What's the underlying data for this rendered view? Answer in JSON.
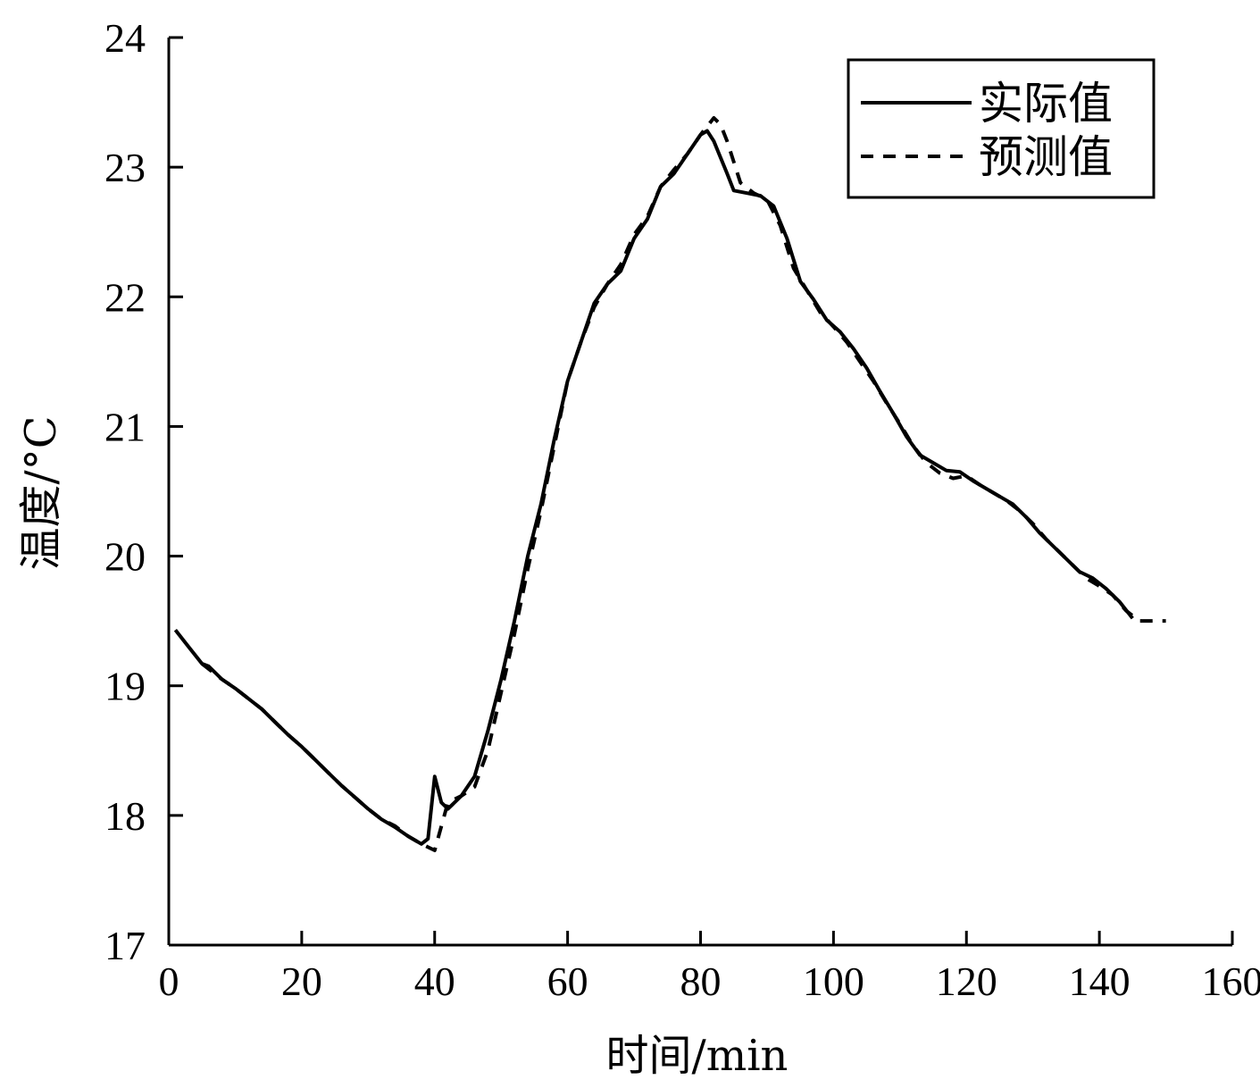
{
  "chart_data": {
    "type": "line",
    "title": "",
    "xlabel": "时间/min",
    "ylabel": "温度/°C",
    "xlim": [
      0,
      160
    ],
    "ylim": [
      17,
      24
    ],
    "xticks": [
      "0",
      "20",
      "40",
      "60",
      "80",
      "100",
      "120",
      "140",
      "160"
    ],
    "yticks": [
      "17",
      "18",
      "19",
      "20",
      "21",
      "22",
      "23",
      "24"
    ],
    "grid": false,
    "legend_position": "top-right",
    "series": [
      {
        "name": "实际值",
        "style": "solid",
        "color": "#000000",
        "points": [
          [
            1,
            19.43
          ],
          [
            3,
            19.3
          ],
          [
            5,
            19.17
          ],
          [
            6,
            19.15
          ],
          [
            8,
            19.05
          ],
          [
            10,
            18.98
          ],
          [
            12,
            18.9
          ],
          [
            14,
            18.82
          ],
          [
            16,
            18.72
          ],
          [
            18,
            18.62
          ],
          [
            20,
            18.53
          ],
          [
            22,
            18.43
          ],
          [
            24,
            18.33
          ],
          [
            26,
            18.23
          ],
          [
            28,
            18.14
          ],
          [
            30,
            18.05
          ],
          [
            32,
            17.97
          ],
          [
            34,
            17.91
          ],
          [
            36,
            17.84
          ],
          [
            38,
            17.78
          ],
          [
            39,
            17.82
          ],
          [
            40,
            18.3
          ],
          [
            41,
            18.1
          ],
          [
            42,
            18.05
          ],
          [
            44,
            18.15
          ],
          [
            46,
            18.3
          ],
          [
            48,
            18.65
          ],
          [
            50,
            19.05
          ],
          [
            52,
            19.5
          ],
          [
            54,
            20.0
          ],
          [
            56,
            20.4
          ],
          [
            58,
            20.9
          ],
          [
            60,
            21.35
          ],
          [
            62,
            21.65
          ],
          [
            64,
            21.95
          ],
          [
            66,
            22.1
          ],
          [
            68,
            22.2
          ],
          [
            70,
            22.45
          ],
          [
            72,
            22.6
          ],
          [
            74,
            22.85
          ],
          [
            76,
            22.95
          ],
          [
            78,
            23.1
          ],
          [
            80,
            23.25
          ],
          [
            81,
            23.28
          ],
          [
            82,
            23.2
          ],
          [
            84,
            22.95
          ],
          [
            85,
            22.82
          ],
          [
            87,
            22.8
          ],
          [
            89,
            22.78
          ],
          [
            91,
            22.7
          ],
          [
            93,
            22.45
          ],
          [
            95,
            22.12
          ],
          [
            97,
            21.98
          ],
          [
            99,
            21.82
          ],
          [
            101,
            21.73
          ],
          [
            103,
            21.6
          ],
          [
            105,
            21.45
          ],
          [
            107,
            21.27
          ],
          [
            109,
            21.1
          ],
          [
            111,
            20.92
          ],
          [
            113,
            20.78
          ],
          [
            115,
            20.72
          ],
          [
            117,
            20.66
          ],
          [
            119,
            20.65
          ],
          [
            121,
            20.58
          ],
          [
            123,
            20.52
          ],
          [
            125,
            20.46
          ],
          [
            127,
            20.4
          ],
          [
            129,
            20.3
          ],
          [
            131,
            20.18
          ],
          [
            133,
            20.08
          ],
          [
            135,
            19.98
          ],
          [
            137,
            19.88
          ],
          [
            139,
            19.83
          ],
          [
            141,
            19.75
          ],
          [
            143,
            19.65
          ],
          [
            145,
            19.52
          ]
        ]
      },
      {
        "name": "预测值",
        "style": "dashed",
        "color": "#000000",
        "points": [
          [
            5,
            19.17
          ],
          [
            8,
            19.05
          ],
          [
            10,
            18.98
          ],
          [
            12,
            18.9
          ],
          [
            14,
            18.82
          ],
          [
            16,
            18.72
          ],
          [
            18,
            18.62
          ],
          [
            20,
            18.53
          ],
          [
            22,
            18.43
          ],
          [
            24,
            18.33
          ],
          [
            26,
            18.23
          ],
          [
            28,
            18.14
          ],
          [
            30,
            18.05
          ],
          [
            32,
            17.97
          ],
          [
            34,
            17.92
          ],
          [
            36,
            17.84
          ],
          [
            38,
            17.78
          ],
          [
            40,
            17.73
          ],
          [
            42,
            18.1
          ],
          [
            44,
            18.15
          ],
          [
            46,
            18.22
          ],
          [
            48,
            18.5
          ],
          [
            50,
            18.95
          ],
          [
            52,
            19.4
          ],
          [
            54,
            19.9
          ],
          [
            56,
            20.35
          ],
          [
            58,
            20.85
          ],
          [
            60,
            21.35
          ],
          [
            62,
            21.65
          ],
          [
            64,
            21.92
          ],
          [
            66,
            22.1
          ],
          [
            68,
            22.25
          ],
          [
            70,
            22.48
          ],
          [
            72,
            22.62
          ],
          [
            74,
            22.85
          ],
          [
            76,
            22.98
          ],
          [
            78,
            23.1
          ],
          [
            80,
            23.25
          ],
          [
            82,
            23.38
          ],
          [
            83,
            23.33
          ],
          [
            84,
            23.2
          ],
          [
            86,
            22.88
          ],
          [
            88,
            22.8
          ],
          [
            90,
            22.75
          ],
          [
            92,
            22.55
          ],
          [
            94,
            22.22
          ],
          [
            96,
            22.05
          ],
          [
            98,
            21.88
          ],
          [
            100,
            21.77
          ],
          [
            102,
            21.65
          ],
          [
            104,
            21.5
          ],
          [
            106,
            21.35
          ],
          [
            108,
            21.18
          ],
          [
            110,
            21.02
          ],
          [
            112,
            20.85
          ],
          [
            114,
            20.72
          ],
          [
            116,
            20.64
          ],
          [
            118,
            20.6
          ],
          [
            120,
            20.62
          ],
          [
            122,
            20.55
          ],
          [
            124,
            20.49
          ],
          [
            126,
            20.43
          ],
          [
            128,
            20.35
          ],
          [
            130,
            20.25
          ],
          [
            132,
            20.13
          ],
          [
            134,
            20.03
          ],
          [
            136,
            19.93
          ],
          [
            138,
            19.83
          ],
          [
            140,
            19.77
          ],
          [
            142,
            19.7
          ],
          [
            144,
            19.58
          ],
          [
            146,
            19.5
          ],
          [
            150,
            19.5
          ]
        ]
      }
    ]
  }
}
